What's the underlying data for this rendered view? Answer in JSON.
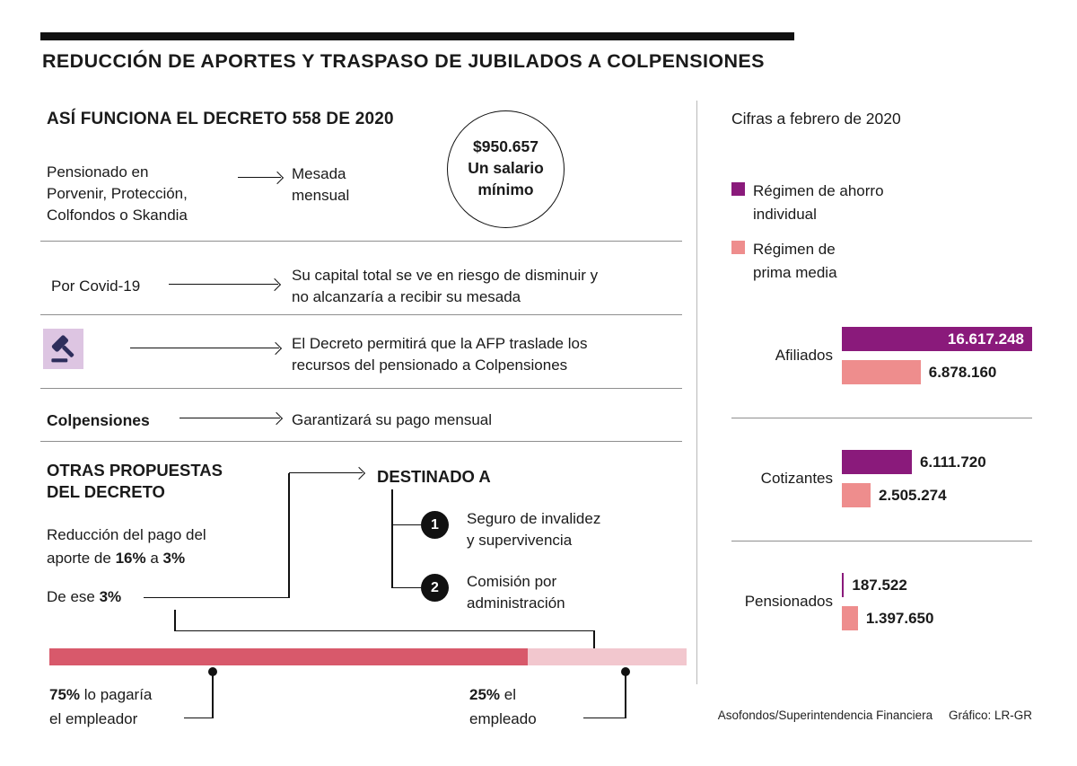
{
  "title": "REDUCCIÓN DE APORTES Y TRASPASO DE JUBILADOS A COLPENSIONES",
  "left": {
    "heading": "ASÍ FUNCIONA EL DECRETO 558 DE 2020",
    "salary_circle": {
      "amount": "$950.657",
      "line1": "Un salario",
      "line2": "mínimo"
    },
    "row1": {
      "source_l1": "Pensionado en",
      "source_l2": "Porvenir, Protección,",
      "source_l3": "Colfondos o Skandia",
      "target_l1": "Mesada",
      "target_l2": "mensual"
    },
    "row2": {
      "source": "Por Covid-19",
      "target_l1": "Su capital total se ve en riesgo de disminuir y",
      "target_l2": "no alcanzaría a recibir su mesada"
    },
    "row3": {
      "icon": "gavel-icon",
      "icon_bg": "#ddc5e2",
      "target_l1": "El Decreto permitirá que la AFP traslade los",
      "target_l2": "recursos del pensionado a Colpensiones"
    },
    "row4": {
      "source": "Colpensiones",
      "target": "Garantizará su pago mensual"
    },
    "proposals": {
      "heading_l1": "OTRAS PROPUESTAS",
      "heading_l2": "DEL DECRETO",
      "reduction_l1": "Reducción del pago del",
      "reduction_l2_pre": "aporte de ",
      "reduction_from": "16%",
      "reduction_mid": " a ",
      "reduction_to": "3%",
      "de_ese_pre": "De ese ",
      "de_ese_pct": "3%"
    },
    "destined": {
      "heading": "DESTINADO A",
      "items": [
        {
          "number": "1",
          "line1": "Seguro de invalidez",
          "line2": "y supervivencia"
        },
        {
          "number": "2",
          "line1": "Comisión por",
          "line2": "administración"
        }
      ]
    },
    "split_bar": {
      "employer_pct": 75,
      "employee_pct": 25,
      "employer_color": "#d8596b",
      "employee_color": "#f2c7ce",
      "employer_bold": "75%",
      "employer_rest": " lo pagaría",
      "employer_line2": "el empleador",
      "employee_bold": "25%",
      "employee_rest": " el",
      "employee_line2": "empleado"
    }
  },
  "right": {
    "heading": "Cifras a febrero de 2020",
    "footer_source": "Asofondos/Superintendencia Financiera",
    "footer_credit": "Gráfico: LR-GR"
  },
  "chart_data": {
    "type": "bar",
    "orientation": "horizontal",
    "title": "Cifras a febrero de 2020",
    "categories": [
      "Afiliados",
      "Cotizantes",
      "Pensionados"
    ],
    "series": [
      {
        "name": "Régimen de ahorro individual",
        "legend_l1": "Régimen de ahorro",
        "legend_l2": "individual",
        "color": "#8a1a7b",
        "values": [
          16617248,
          6111720,
          187522
        ],
        "labels": [
          "16.617.248",
          "6.111.720",
          "187.522"
        ]
      },
      {
        "name": "Régimen de prima media",
        "legend_l1": "Régimen de",
        "legend_l2": "prima media",
        "color": "#ee8d8d",
        "values": [
          6878160,
          2505274,
          1397650
        ],
        "labels": [
          "6.878.160",
          "2.505.274",
          "1.397.650"
        ]
      }
    ],
    "xmax": 16617248,
    "grid": false,
    "legend_position": "top-left"
  }
}
